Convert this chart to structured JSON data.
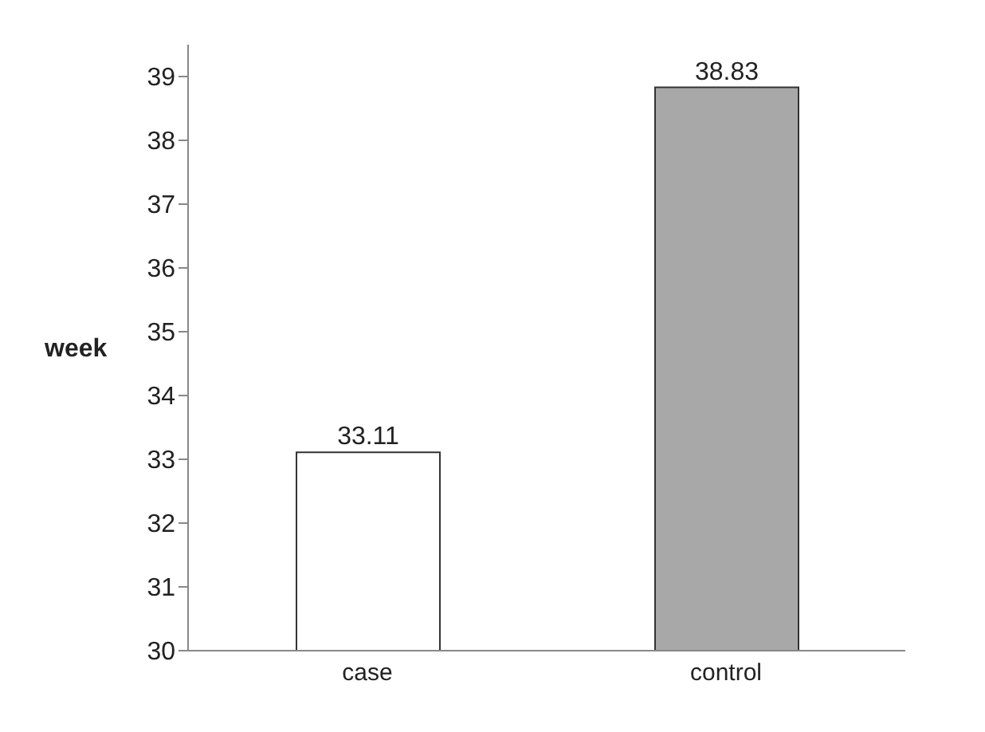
{
  "chart_data": {
    "type": "bar",
    "ylabel": "week",
    "categories": [
      "case",
      "control"
    ],
    "values": [
      33.11,
      38.83
    ],
    "colors": [
      "#ffffff",
      "#a8a8a8"
    ],
    "ylim": [
      30,
      39.5
    ],
    "yticks": [
      30,
      31,
      32,
      33,
      34,
      35,
      36,
      37,
      38,
      39
    ],
    "data_labels": true,
    "grid": false,
    "legend": false
  }
}
